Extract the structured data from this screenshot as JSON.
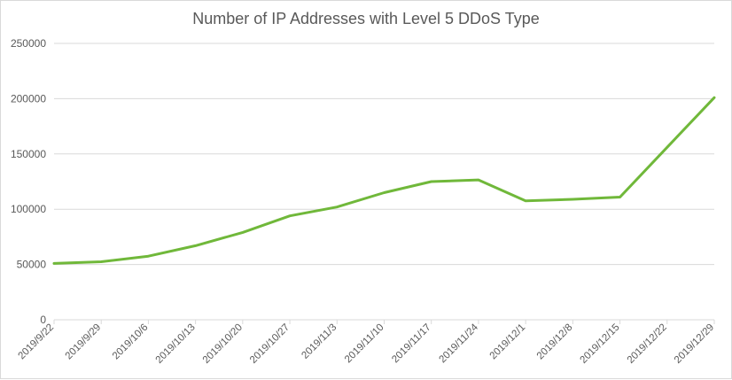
{
  "chart_data": {
    "type": "line",
    "title": "Number of IP Addresses with Level 5 DDoS Type",
    "xlabel": "",
    "ylabel": "",
    "x": [
      "2019/9/22",
      "2019/9/29",
      "2019/10/6",
      "2019/10/13",
      "2019/10/20",
      "2019/10/27",
      "2019/11/3",
      "2019/11/10",
      "2019/11/17",
      "2019/11/24",
      "2019/12/1",
      "2019/12/8",
      "2019/12/15",
      "2019/12/22",
      "2019/12/29"
    ],
    "series": [
      {
        "values": [
          51000,
          52500,
          57500,
          67000,
          79000,
          94000,
          102000,
          115000,
          125000,
          126500,
          107500,
          109000,
          111000,
          156000,
          201000
        ],
        "color": "#70b83a"
      }
    ],
    "ylim": [
      0,
      250000
    ],
    "yticks": [
      "0",
      "50000",
      "100000",
      "150000",
      "200000",
      "250000"
    ],
    "grid": "horizontal",
    "legend": "none"
  }
}
